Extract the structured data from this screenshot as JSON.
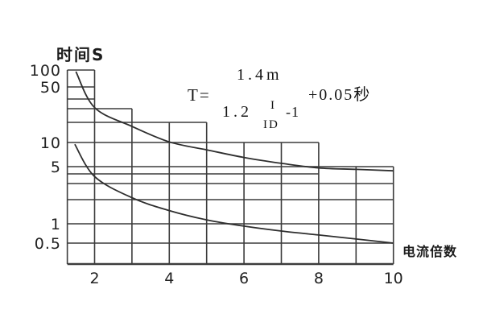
{
  "chart": {
    "y_axis_title": "时间S",
    "x_axis_title": "电流倍数",
    "y_tick_labels": [
      "100",
      "50",
      "10",
      "5",
      "1",
      "0.5"
    ],
    "y_tick_values": [
      100,
      50,
      10,
      5,
      1,
      0.5
    ],
    "x_tick_labels": [
      "2",
      "4",
      "6",
      "8",
      "10"
    ],
    "x_tick_values": [
      2,
      4,
      6,
      8,
      10
    ]
  },
  "formula": {
    "lhs": "T=",
    "numerator": "1.4m",
    "denominator_base": "1.2",
    "exponent_numerator": "I",
    "exponent_denominator": "ID",
    "denominator_tail": "-1",
    "addend": "+0.05秒"
  },
  "chart_data": {
    "type": "line",
    "title": "",
    "xlabel": "电流倍数",
    "ylabel": "时间S",
    "x_axis": {
      "scale": "linear",
      "range": [
        1.27,
        10
      ],
      "ticks": [
        2,
        4,
        6,
        8,
        10
      ]
    },
    "y_axis": {
      "scale": "log",
      "range": [
        0.3,
        120
      ],
      "ticks": [
        100,
        50,
        10,
        5,
        1,
        0.5
      ]
    },
    "series": [
      {
        "name": "upper-curve",
        "points": [
          [
            1.5,
            94
          ],
          [
            2,
            31
          ],
          [
            3,
            17.4
          ],
          [
            4,
            10.2
          ],
          [
            5,
            8.1
          ],
          [
            6,
            6.5
          ],
          [
            7,
            5.5
          ],
          [
            8,
            4.8
          ],
          [
            9,
            4.6
          ],
          [
            10,
            4.4
          ]
        ]
      },
      {
        "name": "lower-curve",
        "points": [
          [
            1.47,
            9.5
          ],
          [
            2,
            3.7
          ],
          [
            3,
            2.1
          ],
          [
            4,
            1.46
          ],
          [
            5,
            1.12
          ],
          [
            6,
            0.92
          ],
          [
            7,
            0.77
          ],
          [
            8,
            0.67
          ],
          [
            9,
            0.58
          ],
          [
            10,
            0.5
          ]
        ]
      }
    ],
    "grid": {
      "h_lines": [
        {
          "v": 100,
          "x0": 1.27,
          "x1": 2
        },
        {
          "v": 50,
          "x0": 1.27,
          "x1": 2
        },
        {
          "v": 40,
          "x0": 1.27,
          "x1": 2
        },
        {
          "v": 30,
          "x0": 1.27,
          "x1": 3
        },
        {
          "v": 20,
          "x0": 1.27,
          "x1": 5
        },
        {
          "v": 10,
          "x0": 1.27,
          "x1": 8
        },
        {
          "v": 5,
          "x0": 1.27,
          "x1": 10
        },
        {
          "v": 4,
          "x0": 1.27,
          "x1": 8
        },
        {
          "v": 3,
          "x0": 1.27,
          "x1": 10
        },
        {
          "v": 2,
          "x0": 1.27,
          "x1": 10
        },
        {
          "v": 1,
          "x0": 1.27,
          "x1": 10
        },
        {
          "v": 0.5,
          "x0": 1.27,
          "x1": 10
        }
      ],
      "v_lines": [
        {
          "x": 1.27,
          "top_v": 100
        },
        {
          "x": 2,
          "top_v": 100
        },
        {
          "x": 3,
          "top_v": 30
        },
        {
          "x": 4,
          "top_v": 20
        },
        {
          "x": 5,
          "top_v": 20
        },
        {
          "x": 6,
          "top_v": 10
        },
        {
          "x": 7,
          "top_v": 10
        },
        {
          "x": 8,
          "top_v": 10
        },
        {
          "x": 9,
          "top_v": 5
        },
        {
          "x": 10,
          "top_v": 5
        }
      ]
    },
    "colors": {
      "background": "#ffffff",
      "grid_line": "#3c3c3c",
      "curve_line": "#2e2e2e",
      "text": "#1c1c1c"
    }
  }
}
